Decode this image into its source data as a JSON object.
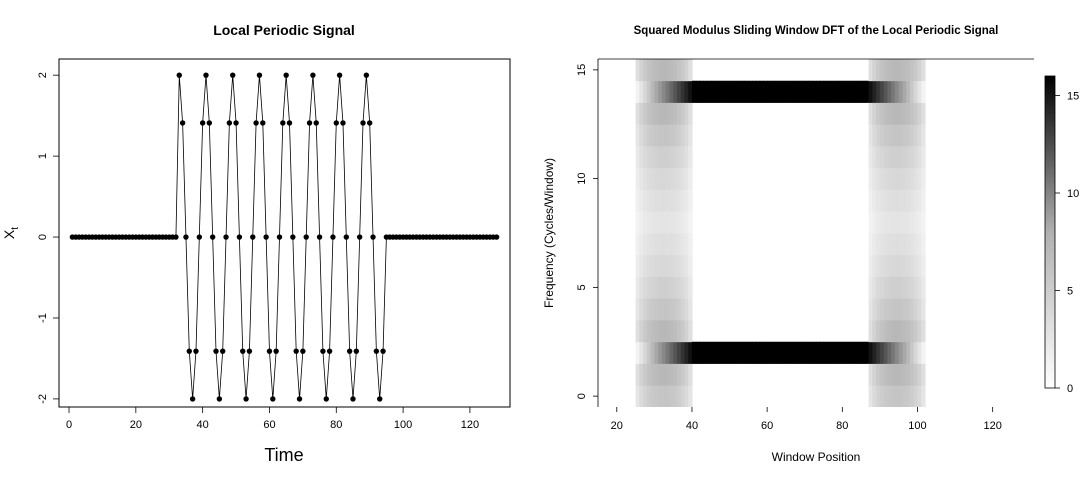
{
  "chart_data": [
    {
      "type": "line",
      "title": "Local Periodic Signal",
      "xlabel": "Time",
      "ylabel": "X",
      "ylabel_subscript": "t",
      "xlim": [
        -3,
        132
      ],
      "ylim": [
        -2.1,
        2.2
      ],
      "xticks": [
        0,
        20,
        40,
        60,
        80,
        100,
        120
      ],
      "yticks": [
        -2,
        -1,
        0,
        1,
        2
      ],
      "grid": false,
      "legend": "none",
      "series": [
        {
          "x": [
            1,
            2,
            3,
            4,
            5,
            6,
            7,
            8,
            9,
            10,
            11,
            12,
            13,
            14,
            15,
            16,
            17,
            18,
            19,
            20,
            21,
            22,
            23,
            24,
            25,
            26,
            27,
            28,
            29,
            30,
            31,
            32,
            33,
            34,
            35,
            36,
            37,
            38,
            39,
            40,
            41,
            42,
            43,
            44,
            45,
            46,
            47,
            48,
            49,
            50,
            51,
            52,
            53,
            54,
            55,
            56,
            57,
            58,
            59,
            60,
            61,
            62,
            63,
            64,
            65,
            66,
            67,
            68,
            69,
            70,
            71,
            72,
            73,
            74,
            75,
            76,
            77,
            78,
            79,
            80,
            81,
            82,
            83,
            84,
            85,
            86,
            87,
            88,
            89,
            90,
            91,
            92,
            93,
            94,
            95,
            96,
            97,
            98,
            99,
            100,
            101,
            102,
            103,
            104,
            105,
            106,
            107,
            108,
            109,
            110,
            111,
            112,
            113,
            114,
            115,
            116,
            117,
            118,
            119,
            120,
            121,
            122,
            123,
            124,
            125,
            126,
            127,
            128
          ],
          "values": [
            0,
            0,
            0,
            0,
            0,
            0,
            0,
            0,
            0,
            0,
            0,
            0,
            0,
            0,
            0,
            0,
            0,
            0,
            0,
            0,
            0,
            0,
            0,
            0,
            0,
            0,
            0,
            0,
            0,
            0,
            0,
            0,
            2,
            1.41,
            0,
            -1.41,
            -2,
            -1.41,
            0,
            1.41,
            2,
            1.41,
            0,
            -1.41,
            -2,
            -1.41,
            0,
            1.41,
            2,
            1.41,
            0,
            -1.41,
            -2,
            -1.41,
            0,
            1.41,
            2,
            1.41,
            0,
            -1.41,
            -2,
            -1.41,
            0,
            1.41,
            2,
            1.41,
            0,
            -1.41,
            -2,
            -1.41,
            0,
            1.41,
            2,
            1.41,
            0,
            -1.41,
            -2,
            -1.41,
            0,
            1.41,
            2,
            1.41,
            0,
            -1.41,
            -2,
            -1.41,
            0,
            1.41,
            2,
            1.41,
            0,
            -1.41,
            -2,
            -1.41,
            0,
            0,
            0,
            0,
            0,
            0,
            0,
            0,
            0,
            0,
            0,
            0,
            0,
            0,
            0,
            0,
            0,
            0,
            0,
            0,
            0,
            0,
            0,
            0,
            0,
            0,
            0,
            0,
            0,
            0,
            0,
            0,
            0,
            0
          ]
        }
      ]
    },
    {
      "type": "heatmap",
      "title": "Squared Modulus Sliding Window DFT of the Local Periodic Signal",
      "xlabel": "Window Position",
      "ylabel": "Frequency (Cycles/Window)",
      "xlim": [
        15,
        131
      ],
      "ylim": [
        -0.5,
        15.5
      ],
      "xticks": [
        20,
        40,
        60,
        80,
        100,
        120
      ],
      "yticks": [
        0,
        5,
        10,
        15
      ],
      "colorbar": {
        "range": [
          0,
          16
        ],
        "ticks": [
          0,
          5,
          10,
          15
        ],
        "low_color": "#ffffff",
        "high_color": "#000000",
        "placement": "right"
      },
      "window_positions": [
        33,
        96
      ],
      "frequencies": [
        0,
        15
      ],
      "notes_visible": "bright bands at frequency 2 and 14 for window positions about 33 to 108"
    }
  ]
}
